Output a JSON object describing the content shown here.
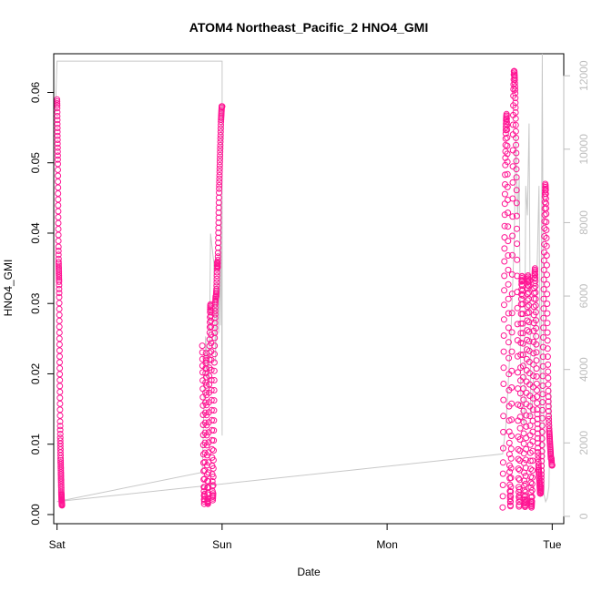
{
  "chart_data": {
    "type": "scatter",
    "title": "ATOM4 Northeast_Pacific_2 HNO4_GMI",
    "xlabel": "Date",
    "ylabel": "HNO4_GMI",
    "x_ticks": [
      "Sat",
      "Sun",
      "Mon",
      "Tue"
    ],
    "xlim": [
      -0.02,
      3.07
    ],
    "ylim": [
      -0.0013,
      0.0655
    ],
    "y_ticks": [
      0.0,
      0.01,
      0.02,
      0.03,
      0.04,
      0.05,
      0.06
    ],
    "y_tick_labels": [
      "0.00",
      "0.01",
      "0.02",
      "0.03",
      "0.04",
      "0.05",
      "0.06"
    ],
    "y2lim": [
      -200,
      12600
    ],
    "y2_ticks": [
      0,
      2000,
      4000,
      6000,
      8000,
      10000,
      12000
    ],
    "y2_tick_labels": [
      "0",
      "2000",
      "4000",
      "6000",
      "8000",
      "10000",
      "12000"
    ],
    "grid": false,
    "colors": {
      "points": "#ff1493",
      "secondary_line": "#c8c8c8",
      "secondary_axis": "#bdbdbd"
    },
    "series": [
      {
        "name": "",
        "axis": "left",
        "style": "points",
        "segments": [
          {
            "x_start": 0.0,
            "x_end": 0.03,
            "y": [
              0.059,
              0.058,
              0.056,
              0.054,
              0.052,
              0.05,
              0.047,
              0.044,
              0.041,
              0.038,
              0.036,
              0.035,
              0.034,
              0.033,
              0.031,
              0.028,
              0.025,
              0.022,
              0.019,
              0.016,
              0.013,
              0.011,
              0.0095,
              0.008,
              0.007,
              0.006,
              0.005,
              0.004,
              0.003,
              0.0025,
              0.002,
              0.0015,
              0.0013
            ]
          },
          {
            "x_start": 0.88,
            "x_end": 1.0,
            "y": [
              0.024,
              0.02,
              0.015,
              0.009,
              0.004,
              0.0015,
              0.003,
              0.008,
              0.014,
              0.02,
              0.023,
              0.018,
              0.012,
              0.006,
              0.002,
              0.0015,
              0.005,
              0.011,
              0.017,
              0.022,
              0.026,
              0.029,
              0.03,
              0.027,
              0.022,
              0.016,
              0.01,
              0.005,
              0.002,
              0.003,
              0.008,
              0.014,
              0.02,
              0.025,
              0.028,
              0.03,
              0.031,
              0.031,
              0.032,
              0.034,
              0.036,
              0.035,
              0.037,
              0.04,
              0.043,
              0.046,
              0.048,
              0.05,
              0.052,
              0.054,
              0.056,
              0.057,
              0.058,
              0.058
            ]
          },
          {
            "x_start": 2.7,
            "x_end": 3.0,
            "y": [
              0.001,
              0.008,
              0.018,
              0.028,
              0.037,
              0.044,
              0.05,
              0.054,
              0.056,
              0.057,
              0.055,
              0.05,
              0.042,
              0.033,
              0.024,
              0.014,
              0.007,
              0.003,
              0.001,
              0.004,
              0.01,
              0.02,
              0.032,
              0.044,
              0.054,
              0.06,
              0.063,
              0.063,
              0.062,
              0.06,
              0.057,
              0.053,
              0.048,
              0.04,
              0.03,
              0.02,
              0.01,
              0.004,
              0.001,
              0.003,
              0.009,
              0.016,
              0.024,
              0.03,
              0.033,
              0.034,
              0.031,
              0.025,
              0.018,
              0.011,
              0.005,
              0.002,
              0.001,
              0.003,
              0.008,
              0.015,
              0.022,
              0.028,
              0.032,
              0.034,
              0.033,
              0.029,
              0.023,
              0.016,
              0.01,
              0.005,
              0.002,
              0.001,
              0.002,
              0.006,
              0.012,
              0.019,
              0.026,
              0.031,
              0.034,
              0.035,
              0.033,
              0.029,
              0.024,
              0.019,
              0.015,
              0.012,
              0.009,
              0.007,
              0.006,
              0.005,
              0.004,
              0.003,
              0.003,
              0.004,
              0.006,
              0.009,
              0.013,
              0.018,
              0.024,
              0.03,
              0.036,
              0.041,
              0.045,
              0.047,
              0.046,
              0.043,
              0.038,
              0.032,
              0.026,
              0.021,
              0.017,
              0.014,
              0.012,
              0.011,
              0.01,
              0.009,
              0.008,
              0.008,
              0.007,
              0.007
            ]
          }
        ]
      },
      {
        "name": "",
        "axis": "right",
        "style": "line",
        "points": [
          [
            -0.01,
            11000
          ],
          [
            0.0,
            12400
          ],
          [
            1.0,
            12400
          ],
          [
            1.0,
            2200
          ],
          [
            0.995,
            8600
          ],
          [
            0.99,
            5200
          ],
          [
            0.985,
            7300
          ],
          [
            0.98,
            5000
          ],
          [
            0.97,
            6400
          ],
          [
            0.96,
            4200
          ],
          [
            0.95,
            6900
          ],
          [
            0.93,
            7700
          ],
          [
            0.92,
            3300
          ],
          [
            0.9,
            4900
          ],
          [
            0.88,
            1200
          ],
          [
            0.0,
            400
          ],
          [
            2.7,
            1700
          ],
          [
            2.72,
            2500
          ],
          [
            2.75,
            5000
          ],
          [
            2.77,
            7500
          ],
          [
            2.78,
            10400
          ],
          [
            2.79,
            8200
          ],
          [
            2.8,
            9200
          ],
          [
            2.81,
            3000
          ],
          [
            2.83,
            2500
          ],
          [
            2.84,
            9000
          ],
          [
            2.85,
            8200
          ],
          [
            2.86,
            10700
          ],
          [
            2.87,
            2700
          ],
          [
            2.88,
            3100
          ],
          [
            2.9,
            5100
          ],
          [
            2.92,
            9000
          ],
          [
            2.93,
            1200
          ],
          [
            2.94,
            12600
          ],
          [
            2.95,
            600
          ],
          [
            2.96,
            400
          ],
          [
            2.97,
            500
          ],
          [
            2.98,
            800
          ],
          [
            2.99,
            3500
          ],
          [
            3.0,
            1500
          ]
        ]
      }
    ]
  }
}
